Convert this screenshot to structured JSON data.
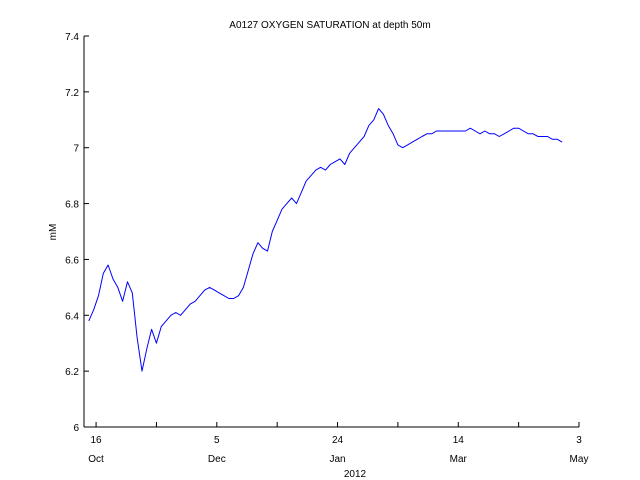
{
  "chart_data": {
    "type": "line",
    "title": "A0127 OXYGEN SATURATION at depth 50m",
    "ylabel": "mM",
    "year_label": "2012",
    "ylim": [
      6,
      7.4
    ],
    "y_ticks": [
      6,
      6.2,
      6.4,
      6.6,
      6.8,
      7,
      7.2,
      7.4
    ],
    "y_tick_labels": [
      "6",
      "6.2",
      "6.4",
      "6.6",
      "6.8",
      "7",
      "7.2",
      "7.4"
    ],
    "xlim": [
      "2011-10-11",
      "2012-05-03"
    ],
    "x_ticks": [
      {
        "date": "2011-10-16",
        "day": "16",
        "month": "Oct"
      },
      {
        "date": "2011-12-05",
        "day": "5",
        "month": "Dec"
      },
      {
        "date": "2012-01-24",
        "day": "24",
        "month": "Jan"
      },
      {
        "date": "2012-03-14",
        "day": "14",
        "month": "Mar"
      },
      {
        "date": "2012-05-03",
        "day": "3",
        "month": "May"
      }
    ],
    "grid": false,
    "line_color": "#0000ff",
    "series": [
      {
        "x": [
          "2011-10-13",
          "2011-10-15",
          "2011-10-17",
          "2011-10-19",
          "2011-10-21",
          "2011-10-23",
          "2011-10-25",
          "2011-10-27",
          "2011-10-29",
          "2011-10-31",
          "2011-11-02",
          "2011-11-04",
          "2011-11-06",
          "2011-11-08",
          "2011-11-10",
          "2011-11-12",
          "2011-11-14",
          "2011-11-16",
          "2011-11-18",
          "2011-11-20",
          "2011-11-22",
          "2011-11-24",
          "2011-11-26",
          "2011-11-28",
          "2011-11-30",
          "2011-12-02",
          "2011-12-04",
          "2011-12-06",
          "2011-12-08",
          "2011-12-10",
          "2011-12-12",
          "2011-12-14",
          "2011-12-16",
          "2011-12-18",
          "2011-12-20",
          "2011-12-22",
          "2011-12-24",
          "2011-12-26",
          "2011-12-28",
          "2011-12-30",
          "2012-01-01",
          "2012-01-03",
          "2012-01-05",
          "2012-01-07",
          "2012-01-09",
          "2012-01-11",
          "2012-01-13",
          "2012-01-15",
          "2012-01-17",
          "2012-01-19",
          "2012-01-21",
          "2012-01-23",
          "2012-01-25",
          "2012-01-27",
          "2012-01-29",
          "2012-01-31",
          "2012-02-02",
          "2012-02-04",
          "2012-02-06",
          "2012-02-08",
          "2012-02-10",
          "2012-02-12",
          "2012-02-14",
          "2012-02-16",
          "2012-02-18",
          "2012-02-20",
          "2012-02-22",
          "2012-02-24",
          "2012-02-26",
          "2012-02-28",
          "2012-03-01",
          "2012-03-03",
          "2012-03-05",
          "2012-03-07",
          "2012-03-09",
          "2012-03-11",
          "2012-03-13",
          "2012-03-15",
          "2012-03-17",
          "2012-03-19",
          "2012-03-21",
          "2012-03-23",
          "2012-03-25",
          "2012-03-27",
          "2012-03-29",
          "2012-03-31",
          "2012-04-02",
          "2012-04-04",
          "2012-04-06",
          "2012-04-08",
          "2012-04-10",
          "2012-04-12",
          "2012-04-14",
          "2012-04-16",
          "2012-04-18",
          "2012-04-20",
          "2012-04-22",
          "2012-04-24",
          "2012-04-26"
        ],
        "y": [
          6.38,
          6.42,
          6.47,
          6.55,
          6.58,
          6.53,
          6.5,
          6.45,
          6.52,
          6.48,
          6.32,
          6.2,
          6.28,
          6.35,
          6.3,
          6.36,
          6.38,
          6.4,
          6.41,
          6.4,
          6.42,
          6.44,
          6.45,
          6.47,
          6.49,
          6.5,
          6.49,
          6.48,
          6.47,
          6.46,
          6.46,
          6.47,
          6.5,
          6.56,
          6.62,
          6.66,
          6.64,
          6.63,
          6.7,
          6.74,
          6.78,
          6.8,
          6.82,
          6.8,
          6.84,
          6.88,
          6.9,
          6.92,
          6.93,
          6.92,
          6.94,
          6.95,
          6.96,
          6.94,
          6.98,
          7.0,
          7.02,
          7.04,
          7.08,
          7.1,
          7.14,
          7.12,
          7.08,
          7.05,
          7.01,
          7.0,
          7.01,
          7.02,
          7.03,
          7.04,
          7.05,
          7.05,
          7.06,
          7.06,
          7.06,
          7.06,
          7.06,
          7.06,
          7.06,
          7.07,
          7.06,
          7.05,
          7.06,
          7.05,
          7.05,
          7.04,
          7.05,
          7.06,
          7.07,
          7.07,
          7.06,
          7.05,
          7.05,
          7.04,
          7.04,
          7.04,
          7.03,
          7.03,
          7.02
        ]
      }
    ]
  }
}
